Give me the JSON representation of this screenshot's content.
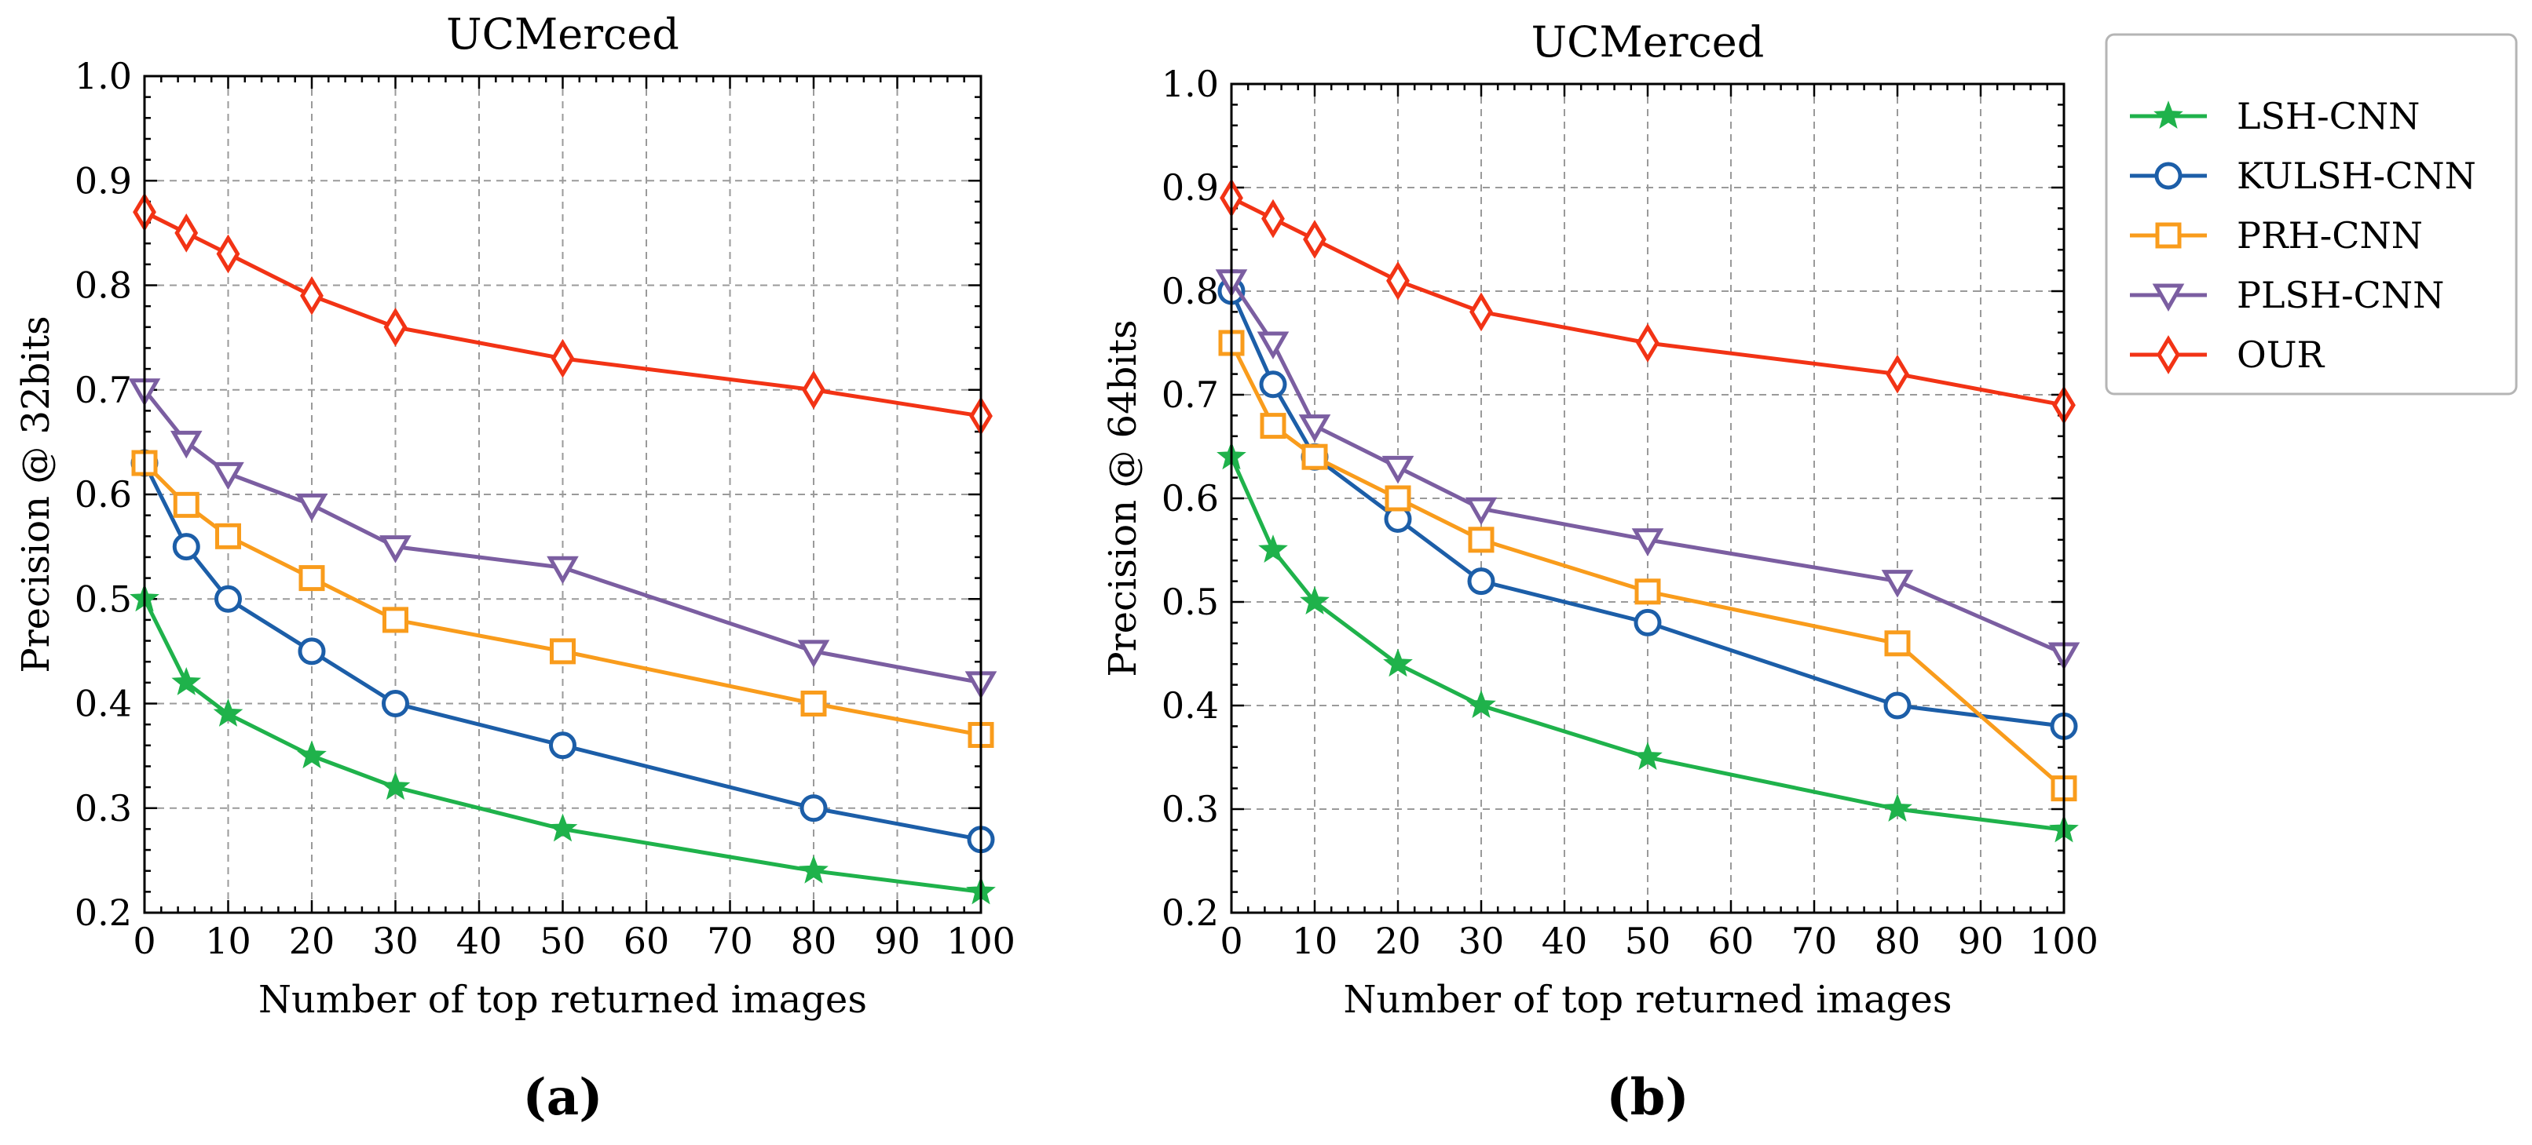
{
  "colors": {
    "LSH-CNN": "#1fb24b",
    "KULSH-CNN": "#1c5ea8",
    "PRH-CNN": "#f99c1c",
    "PLSH-CNN": "#7b5ea1",
    "OUR": "#f23315"
  },
  "legend": {
    "entries": [
      {
        "name": "LSH-CNN",
        "marker": "star"
      },
      {
        "name": "KULSH-CNN",
        "marker": "circle"
      },
      {
        "name": "PRH-CNN",
        "marker": "square"
      },
      {
        "name": "PLSH-CNN",
        "marker": "triangle-down"
      },
      {
        "name": "OUR",
        "marker": "diamond"
      }
    ],
    "placement": "right"
  },
  "chart_data": [
    {
      "type": "line",
      "panel_label": "(a)",
      "title": "UCMerced",
      "xlabel": "Number of top returned images",
      "ylabel": "Precision @ 32bits",
      "xlim": [
        0,
        100
      ],
      "ylim": [
        0.2,
        1.0
      ],
      "xticks": [
        0,
        10,
        20,
        30,
        40,
        50,
        60,
        70,
        80,
        90,
        100
      ],
      "xtick_labels": [
        "0",
        "10",
        "20",
        "30",
        "40",
        "50",
        "60",
        "70",
        "80",
        "90",
        "100"
      ],
      "yticks": [
        0.2,
        0.3,
        0.4,
        0.5,
        0.6,
        0.7,
        0.8,
        0.9,
        1.0
      ],
      "ytick_labels": [
        "0.2",
        "0.3",
        "0.4",
        "0.5",
        "0.6",
        "0.7",
        "0.8",
        "0.9",
        "1.0"
      ],
      "grid": true,
      "x": [
        0,
        5,
        10,
        20,
        30,
        50,
        80,
        100
      ],
      "series": [
        {
          "name": "LSH-CNN",
          "marker": "star",
          "values": [
            0.5,
            0.42,
            0.39,
            0.35,
            0.32,
            0.28,
            0.24,
            0.22
          ]
        },
        {
          "name": "KULSH-CNN",
          "marker": "circle",
          "values": [
            0.63,
            0.55,
            0.5,
            0.45,
            0.4,
            0.36,
            0.3,
            0.27
          ]
        },
        {
          "name": "PRH-CNN",
          "marker": "square",
          "values": [
            0.63,
            0.59,
            0.56,
            0.52,
            0.48,
            0.45,
            0.4,
            0.37
          ]
        },
        {
          "name": "PLSH-CNN",
          "marker": "triangle-down",
          "values": [
            0.7,
            0.65,
            0.62,
            0.59,
            0.55,
            0.53,
            0.45,
            0.42
          ]
        },
        {
          "name": "OUR",
          "marker": "diamond",
          "values": [
            0.87,
            0.85,
            0.83,
            0.79,
            0.76,
            0.73,
            0.7,
            0.675
          ]
        }
      ]
    },
    {
      "type": "line",
      "panel_label": "(b)",
      "title": "UCMerced",
      "xlabel": "Number of top returned images",
      "ylabel": "Precision @ 64bits",
      "xlim": [
        0,
        100
      ],
      "ylim": [
        0.2,
        1.0
      ],
      "xticks": [
        0,
        10,
        20,
        30,
        40,
        50,
        60,
        70,
        80,
        90,
        100
      ],
      "xtick_labels": [
        "0",
        "10",
        "20",
        "30",
        "40",
        "50",
        "60",
        "70",
        "80",
        "90",
        "100"
      ],
      "yticks": [
        0.2,
        0.3,
        0.4,
        0.5,
        0.6,
        0.7,
        0.8,
        0.9,
        1.0
      ],
      "ytick_labels": [
        "0.2",
        "0.3",
        "0.4",
        "0.5",
        "0.6",
        "0.7",
        "0.8",
        "0.9",
        "1.0"
      ],
      "grid": true,
      "x": [
        0,
        5,
        10,
        20,
        30,
        50,
        80,
        100
      ],
      "series": [
        {
          "name": "LSH-CNN",
          "marker": "star",
          "values": [
            0.64,
            0.55,
            0.5,
            0.44,
            0.4,
            0.35,
            0.3,
            0.28
          ]
        },
        {
          "name": "KULSH-CNN",
          "marker": "circle",
          "values": [
            0.8,
            0.71,
            0.64,
            0.58,
            0.52,
            0.48,
            0.4,
            0.38
          ]
        },
        {
          "name": "PRH-CNN",
          "marker": "square",
          "values": [
            0.75,
            0.67,
            0.64,
            0.6,
            0.56,
            0.51,
            0.46,
            0.32
          ]
        },
        {
          "name": "PLSH-CNN",
          "marker": "triangle-down",
          "values": [
            0.81,
            0.75,
            0.67,
            0.63,
            0.59,
            0.56,
            0.52,
            0.45
          ]
        },
        {
          "name": "OUR",
          "marker": "diamond",
          "values": [
            0.89,
            0.87,
            0.85,
            0.81,
            0.78,
            0.75,
            0.72,
            0.69
          ]
        }
      ]
    }
  ]
}
